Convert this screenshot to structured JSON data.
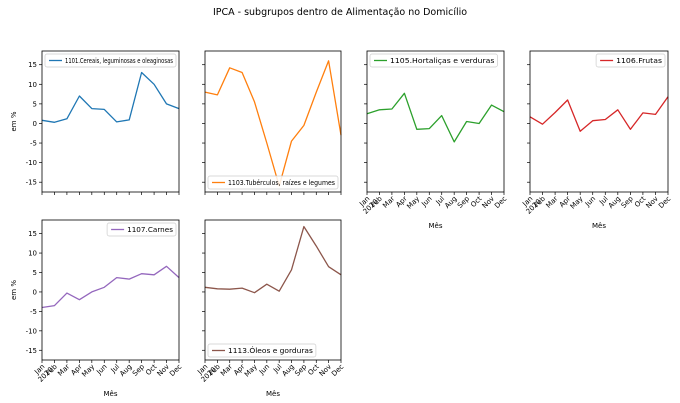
{
  "title": "IPCA - subgrupos dentro de Alimentação no Domicílio",
  "x_ticks": [
    "Jan\n2020",
    "Feb",
    "Mar",
    "Apr",
    "May",
    "Jun",
    "Jul",
    "Aug",
    "Sep",
    "Oct",
    "Nov",
    "Dec"
  ],
  "y_ticks": [
    "-15",
    "-10",
    "-5",
    "0",
    "5",
    "10",
    "15"
  ],
  "ylabel": "em %",
  "xlabel": "Mês",
  "chart_data": [
    {
      "type": "line",
      "legend": "1101.Cereais, leguminosas e oleaginosas",
      "legend_loc": "upper-left",
      "color": "#1f77b4",
      "ylim": [
        -17.5,
        18.5
      ],
      "show_yticks": true,
      "show_xticks": false,
      "show_ylabel": true,
      "show_xlabel": false,
      "values": [
        0.8,
        0.3,
        1.2,
        7.0,
        3.8,
        3.6,
        0.4,
        0.9,
        13.0,
        10.0,
        5.0,
        3.8
      ]
    },
    {
      "type": "line",
      "legend": "1103.Tubérculos, raízes e legumes",
      "legend_loc": "lower-left",
      "color": "#ff7f0e",
      "ylim": [
        -17.5,
        18.5
      ],
      "show_yticks": false,
      "show_xticks": false,
      "show_ylabel": false,
      "show_xlabel": false,
      "values": [
        8.0,
        7.3,
        14.2,
        13.0,
        5.5,
        -5.0,
        -16.0,
        -4.5,
        -0.5,
        8.0,
        16.0,
        -3.0
      ]
    },
    {
      "type": "line",
      "legend": "1105.Hortaliças e verduras",
      "legend_loc": "upper-left",
      "color": "#2ca02c",
      "ylim": [
        -17.5,
        18.5
      ],
      "show_yticks": false,
      "show_xticks": true,
      "show_ylabel": false,
      "show_xlabel": true,
      "values": [
        2.5,
        3.5,
        3.7,
        7.7,
        -1.5,
        -1.3,
        2.0,
        -4.7,
        0.5,
        0.0,
        4.7,
        3.0
      ]
    },
    {
      "type": "line",
      "legend": "1106.Frutas",
      "legend_loc": "upper-right",
      "color": "#d62728",
      "ylim": [
        -17.5,
        18.5
      ],
      "show_yticks": false,
      "show_xticks": true,
      "show_ylabel": false,
      "show_xlabel": true,
      "values": [
        1.7,
        -0.2,
        2.8,
        6.0,
        -2.0,
        0.7,
        1.0,
        3.5,
        -1.5,
        2.7,
        2.3,
        6.8
      ]
    },
    {
      "type": "line",
      "legend": "1107.Carnes",
      "legend_loc": "upper-right",
      "color": "#9467bd",
      "ylim": [
        -17.5,
        18.5
      ],
      "show_yticks": true,
      "show_xticks": true,
      "show_ylabel": true,
      "show_xlabel": true,
      "values": [
        -4.0,
        -3.5,
        -0.3,
        -2.0,
        0.0,
        1.2,
        3.7,
        3.3,
        4.7,
        4.4,
        6.6,
        3.7
      ]
    },
    {
      "type": "line",
      "legend": "1113.Óleos e gorduras",
      "legend_loc": "lower-left",
      "color": "#8c564b",
      "ylim": [
        -17.5,
        18.5
      ],
      "show_yticks": false,
      "show_xticks": true,
      "show_ylabel": false,
      "show_xlabel": true,
      "values": [
        1.2,
        0.8,
        0.7,
        1.0,
        -0.2,
        2.0,
        0.2,
        5.7,
        16.8,
        11.8,
        6.5,
        4.4
      ]
    }
  ]
}
